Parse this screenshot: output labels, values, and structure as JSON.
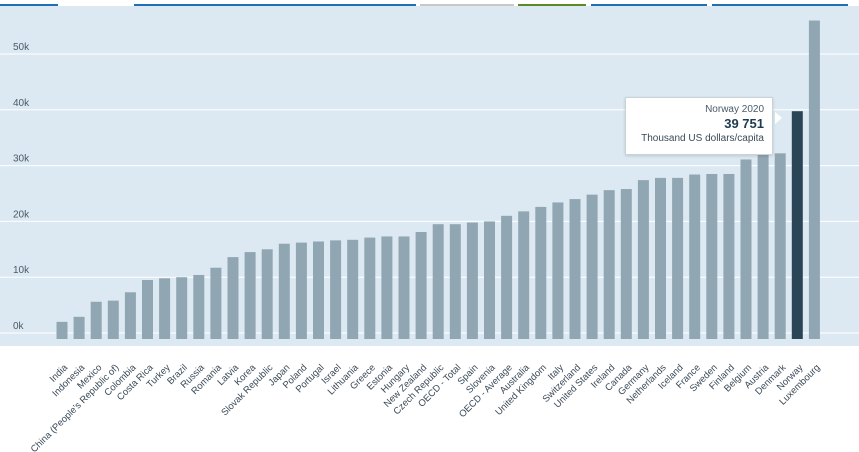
{
  "colors": {
    "bar": "#91a6b3",
    "highlight": "#2a4556",
    "grid": "#ffffff",
    "background": "#dde9f2"
  },
  "chart_data": {
    "type": "bar",
    "title": "",
    "xlabel": "",
    "ylabel": "",
    "ylim": [
      -2000,
      58000
    ],
    "yticks": [
      0,
      10000,
      20000,
      30000,
      40000,
      50000
    ],
    "ytick_labels": [
      "0k",
      "10k",
      "20k",
      "30k",
      "40k",
      "50k"
    ],
    "categories": [
      "India",
      "Indonesia",
      "Mexico",
      "China (People's Republic of)",
      "Colombia",
      "Costa Rica",
      "Turkey",
      "Brazil",
      "Russia",
      "Romania",
      "Latvia",
      "Korea",
      "Slovak Republic",
      "Japan",
      "Poland",
      "Portugal",
      "Israel",
      "Lithuania",
      "Greece",
      "Estonia",
      "Hungary",
      "New Zealand",
      "Czech Republic",
      "OECD - Total",
      "Spain",
      "Slovenia",
      "OECD - Average",
      "Australia",
      "United Kingdom",
      "Italy",
      "Switzerland",
      "United States",
      "Ireland",
      "Canada",
      "Germany",
      "Netherlands",
      "Iceland",
      "France",
      "Sweden",
      "Finland",
      "Belgium",
      "Austria",
      "Denmark",
      "Norway",
      "Luxembourg"
    ],
    "values": [
      2000,
      2900,
      5600,
      5800,
      7300,
      9500,
      9800,
      10000,
      10400,
      11700,
      13600,
      14500,
      15000,
      16000,
      16200,
      16400,
      16600,
      16700,
      17100,
      17300,
      17300,
      18100,
      19500,
      19500,
      19800,
      20000,
      21000,
      21800,
      22600,
      23400,
      24000,
      24800,
      25600,
      25800,
      27400,
      27800,
      27800,
      28400,
      28500,
      28500,
      31100,
      32000,
      32200,
      39751,
      56000
    ],
    "highlight_index": 43
  },
  "tooltip": {
    "title": "Norway 2020",
    "value": "39 751",
    "unit": "Thousand US dollars/capita"
  }
}
